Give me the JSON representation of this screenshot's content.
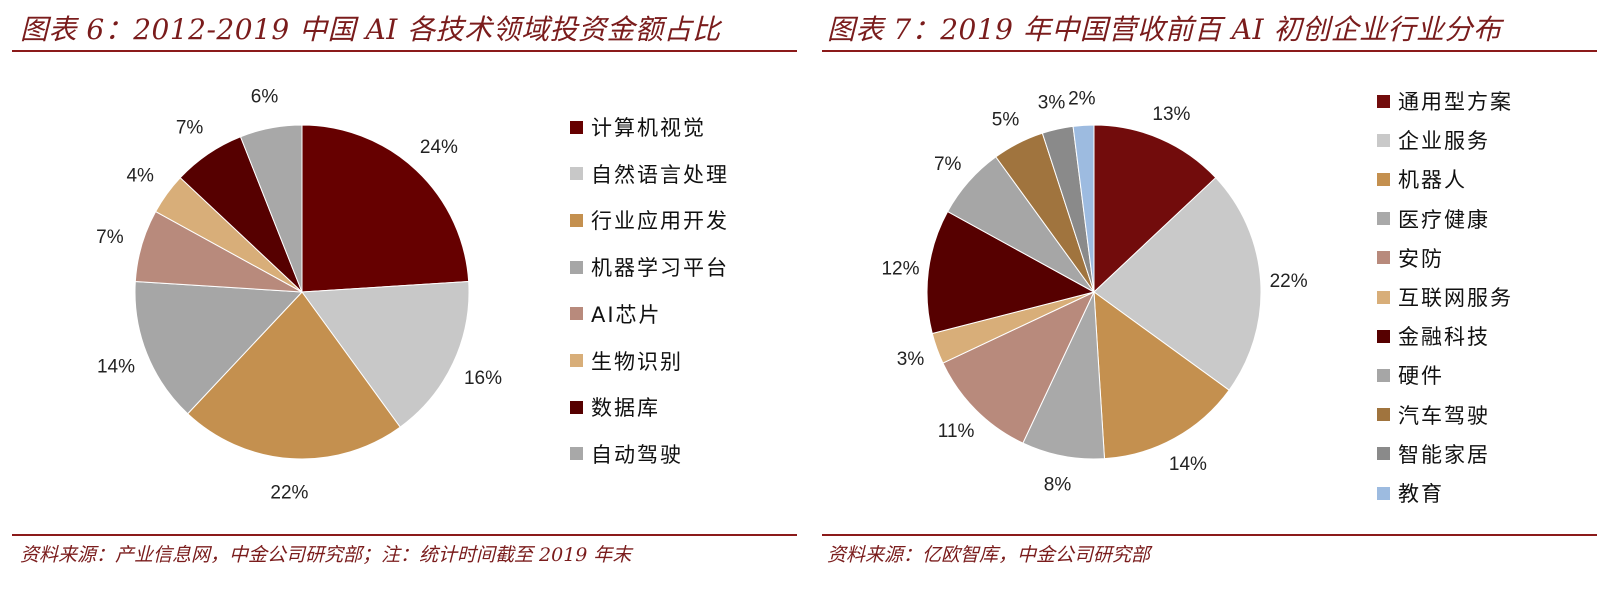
{
  "left": {
    "title": "图表 6：2012-2019 中国 AI 各技术领域投资金额占比",
    "source": "资料来源：产业信息网，中金公司研究部；注：统计时间截至 2019 年末"
  },
  "right": {
    "title": "图表 7：2019 年中国营收前百 AI 初创企业行业分布",
    "source": "资料来源：亿欧智库，中金公司研究部"
  },
  "chart_data": [
    {
      "type": "pie",
      "title": "图表 6：2012-2019 中国 AI 各技术领域投资金额占比",
      "start": "12 o'clock",
      "direction": "clockwise",
      "legend_position": "right",
      "slices": [
        {
          "label": "计算机视觉",
          "value": 24,
          "value_label": "24%",
          "color": "#660000"
        },
        {
          "label": "自然语言处理",
          "value": 16,
          "value_label": "16%",
          "color": "#c8c8c8"
        },
        {
          "label": "行业应用开发",
          "value": 22,
          "value_label": "22%",
          "color": "#c4904f"
        },
        {
          "label": "机器学习平台",
          "value": 14,
          "value_label": "14%",
          "color": "#a6a6a6"
        },
        {
          "label": "AI芯片",
          "value": 7,
          "value_label": "7%",
          "color": "#b88a7c"
        },
        {
          "label": "生物识别",
          "value": 4,
          "value_label": "4%",
          "color": "#d8ae79"
        },
        {
          "label": "数据库",
          "value": 7,
          "value_label": "7%",
          "color": "#560000"
        },
        {
          "label": "自动驾驶",
          "value": 6,
          "value_label": "6%",
          "color": "#a8a8a8"
        }
      ]
    },
    {
      "type": "pie",
      "title": "图表 7：2019 年中国营收前百 AI 初创企业行业分布",
      "start": "12 o'clock",
      "direction": "clockwise",
      "legend_position": "right",
      "slices": [
        {
          "label": "通用型方案",
          "value": 13,
          "value_label": "13%",
          "color": "#720c0c"
        },
        {
          "label": "企业服务",
          "value": 22,
          "value_label": "22%",
          "color": "#c9c9c9"
        },
        {
          "label": "机器人",
          "value": 14,
          "value_label": "14%",
          "color": "#c4904f"
        },
        {
          "label": "医疗健康",
          "value": 8,
          "value_label": "8%",
          "color": "#a9a9a9"
        },
        {
          "label": "安防",
          "value": 11,
          "value_label": "11%",
          "color": "#b88a7c"
        },
        {
          "label": "互联网服务",
          "value": 3,
          "value_label": "3%",
          "color": "#d8ae79"
        },
        {
          "label": "金融科技",
          "value": 12,
          "value_label": "12%",
          "color": "#560000"
        },
        {
          "label": "硬件",
          "value": 7,
          "value_label": "7%",
          "color": "#a6a6a6"
        },
        {
          "label": "汽车驾驶",
          "value": 5,
          "value_label": "5%",
          "color": "#a0743e"
        },
        {
          "label": "智能家居",
          "value": 3,
          "value_label": "3%",
          "color": "#8a8a8a"
        },
        {
          "label": "教育",
          "value": 2,
          "value_label": "2%",
          "color": "#9dbbe0"
        }
      ]
    }
  ]
}
